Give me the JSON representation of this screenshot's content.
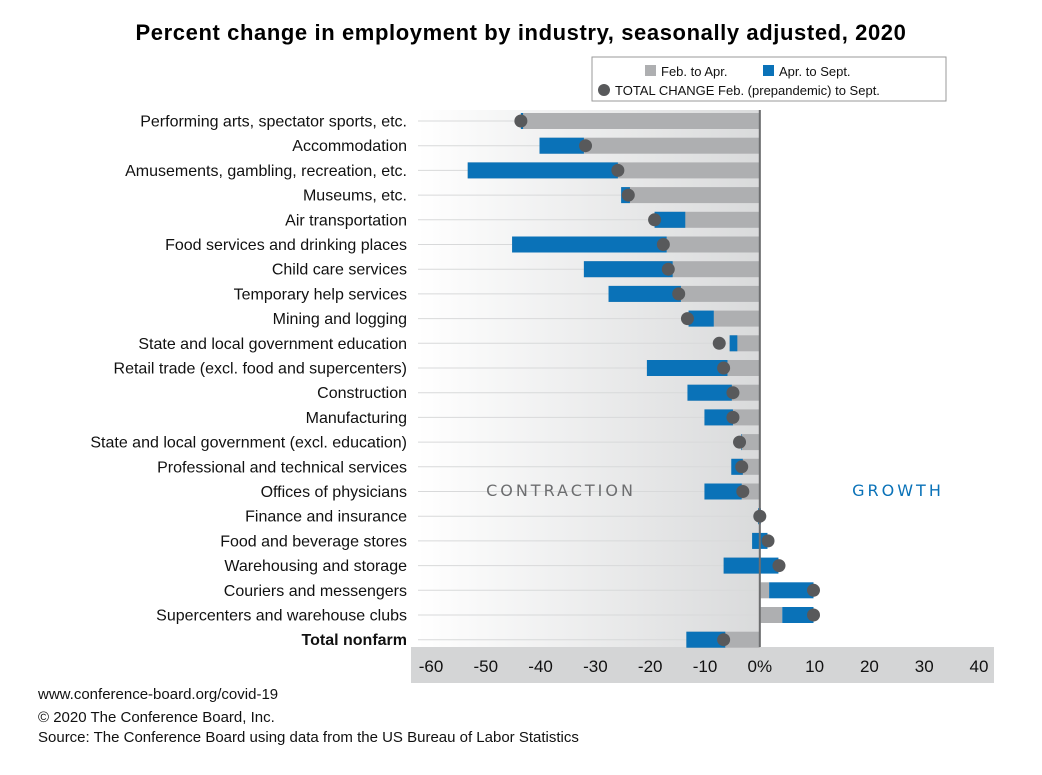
{
  "chart_data": {
    "type": "bar",
    "title": "Percent change in employment by industry, seasonally adjusted, 2020",
    "orientation": "horizontal",
    "categories": [
      "Performing arts, spectator sports, etc.",
      "Accommodation",
      "Amusements, gambling, recreation, etc.",
      "Museums, etc.",
      "Air transportation",
      "Food services and drinking places",
      "Child care services",
      "Temporary help services",
      "Mining and logging",
      "State and local government education",
      "Retail trade (excl. food and supercenters)",
      "Construction",
      "Manufacturing",
      "State and local government (excl. education)",
      "Professional and technical services",
      "Offices of physicians",
      "Finance and insurance",
      "Food and beverage stores",
      "Warehousing and storage",
      "Couriers and messengers",
      "Supercenters and warehouse clubs",
      "Total nonfarm"
    ],
    "bold_category": "Total nonfarm",
    "series": [
      {
        "name": "Feb. to Apr.",
        "color": "#aeafb1",
        "values": [
          -43.6,
          -40.2,
          -53.3,
          -25.3,
          -19.2,
          -45.2,
          -32.1,
          -27.6,
          -13.0,
          -5.5,
          -20.6,
          -13.2,
          -10.1,
          -3.4,
          -5.2,
          -10.1,
          -0.3,
          -1.4,
          -6.6,
          1.7,
          4.1,
          -13.4
        ]
      },
      {
        "name": "Apr. to Sept.",
        "color": "#0a72b8",
        "values": [
          0.4,
          8.1,
          27.4,
          1.6,
          5.6,
          28.2,
          16.2,
          13.2,
          4.6,
          1.4,
          14.7,
          8.1,
          5.2,
          0.1,
          2.1,
          6.8,
          0.5,
          2.8,
          10.0,
          8.1,
          5.7,
          7.1
        ]
      },
      {
        "name": "TOTAL CHANGE Feb. (prepandemic) to Sept.",
        "color": "#58595b",
        "values": [
          -43.6,
          -31.8,
          -25.9,
          -24.0,
          -19.2,
          -17.6,
          -16.7,
          -14.8,
          -13.2,
          -7.4,
          -6.6,
          -4.9,
          -4.9,
          -3.7,
          -3.3,
          -3.1,
          0.0,
          1.5,
          3.5,
          9.8,
          9.8,
          -6.6
        ]
      }
    ],
    "xlim": [
      -60,
      40
    ],
    "xticks": [
      -60,
      -50,
      -40,
      -30,
      -20,
      -10,
      0,
      10,
      20,
      30,
      40
    ],
    "xtick_labels": [
      "-60",
      "-50",
      "-40",
      "-30",
      "-20",
      "-10",
      "0%",
      "10",
      "20",
      "30",
      "40"
    ],
    "annotations": {
      "left": "CONTRACTION",
      "right": "GROWTH"
    },
    "legend_position": "top-right"
  },
  "colors": {
    "feb_apr": "#aeafb1",
    "apr_sept": "#0a72b8",
    "total_dot": "#58595b",
    "contraction_text": "#6d6e70",
    "growth_text": "#0a72b8",
    "axis_band": "#d4d5d6"
  },
  "footer": {
    "url": "www.conference-board.org/covid-19",
    "copyright": "© 2020 The Conference Board, Inc.",
    "source": "Source: The Conference Board using data from the US Bureau of Labor Statistics"
  }
}
